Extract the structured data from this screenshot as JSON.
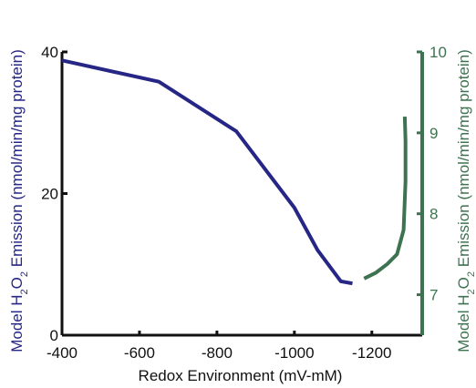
{
  "chart_data": {
    "type": "line",
    "title": "",
    "xlabel": "Redox Environment (mV-mM)",
    "ylabel_left_parts": [
      "Model H",
      "2",
      "O",
      "2",
      " Emission (nmol/min/mg protein)"
    ],
    "ylabel_right_parts": [
      "Model H",
      "2",
      "O",
      "2",
      " Emission (nmol/min/mg protein)"
    ],
    "xlim": [
      -400,
      -1330
    ],
    "ylim_left": [
      0,
      40
    ],
    "ylim_right": [
      6.5,
      10
    ],
    "x_ticks": [
      -400,
      -600,
      -800,
      -1000,
      -1200
    ],
    "x_tick_labels": [
      "-400",
      "-600",
      "-800",
      "-1000",
      "-1200"
    ],
    "y_left_ticks": [
      0,
      20,
      40
    ],
    "y_left_tick_labels": [
      "0",
      "20",
      "40"
    ],
    "y_right_ticks": [
      7,
      8,
      9,
      10
    ],
    "y_right_tick_labels": [
      "7",
      "8",
      "9",
      "10"
    ],
    "colors": {
      "left_series": "#262686",
      "right_series": "#3d7350",
      "axis": "#111111"
    },
    "series": [
      {
        "axis": "left",
        "color": "#262686",
        "points": [
          [
            -400,
            38.8
          ],
          [
            -650,
            35.8
          ],
          [
            -850,
            28.8
          ],
          [
            -1000,
            18.0
          ],
          [
            -1060,
            12.0
          ],
          [
            -1120,
            7.6
          ],
          [
            -1150,
            7.3
          ]
        ]
      },
      {
        "axis": "right",
        "color": "#3d7350",
        "points": [
          [
            -1180,
            7.2
          ],
          [
            -1210,
            7.27
          ],
          [
            -1240,
            7.38
          ],
          [
            -1265,
            7.5
          ],
          [
            -1282,
            7.8
          ],
          [
            -1287,
            8.4
          ],
          [
            -1287,
            8.9
          ],
          [
            -1285,
            9.2
          ]
        ]
      }
    ]
  }
}
